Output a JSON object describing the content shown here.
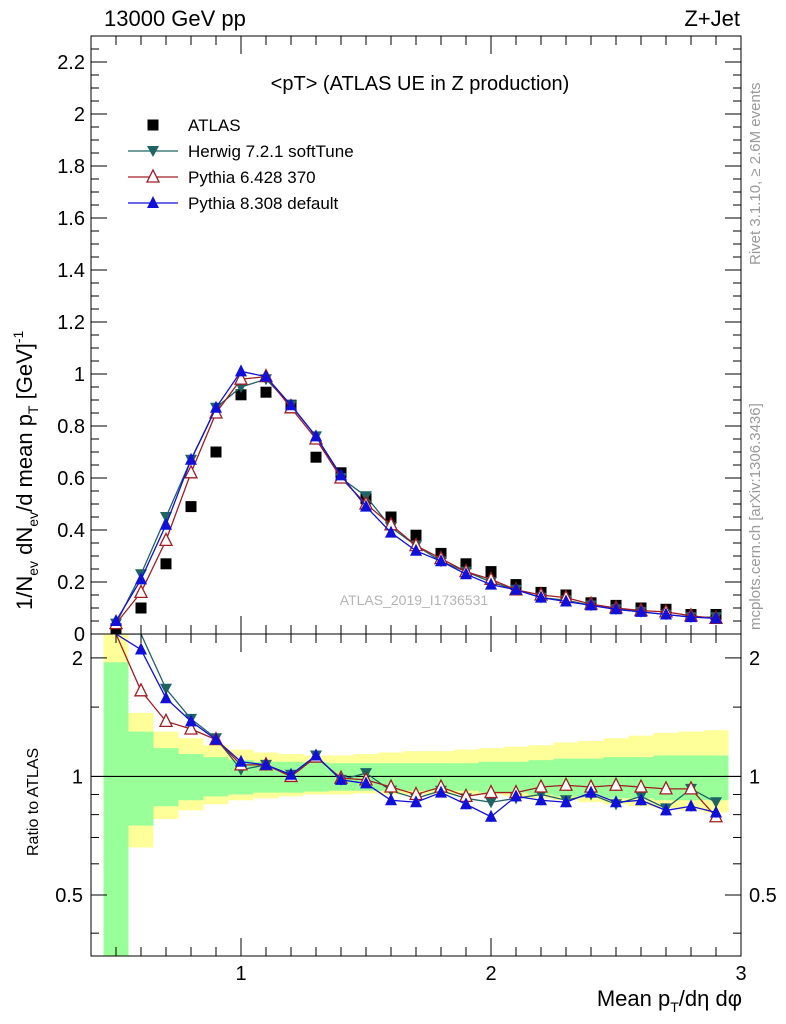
{
  "header": {
    "left": "13000 GeV pp",
    "right": "Z+Jet"
  },
  "side_labels": {
    "rivet": "Rivet 3.1.10, ≥ 2.6M events",
    "mcplots": "mcplots.cern.ch [arXiv:1306.3436]"
  },
  "watermark": "ATLAS_2019_I1736531",
  "colors": {
    "atlas": "#000000",
    "herwig": "#1f6364",
    "pythia6": "#a01d23",
    "pythia8": "#1010d8",
    "band_inner": "#99ff99",
    "band_outer": "#ffff99"
  },
  "chart_data": [
    {
      "type": "line",
      "title": "<pT> (ATLAS UE in Z production)",
      "ylabel": "1/N_ev dN_ev/d mean p_T [GeV]^-1",
      "xlabel": "",
      "xlim": [
        0.4,
        3.0
      ],
      "ylim": [
        0,
        2.3
      ],
      "yticks": [
        "0",
        "0.2",
        "0.4",
        "0.6",
        "0.8",
        "1",
        "1.2",
        "1.4",
        "1.6",
        "1.8",
        "2",
        "2.2"
      ],
      "legend": [
        "ATLAS",
        "Herwig 7.2.1 softTune",
        "Pythia 6.428 370",
        "Pythia 8.308 default"
      ],
      "legend_position": "top-left",
      "x": [
        0.5,
        0.6,
        0.7,
        0.8,
        0.9,
        1.0,
        1.1,
        1.2,
        1.3,
        1.4,
        1.5,
        1.6,
        1.7,
        1.8,
        1.9,
        2.0,
        2.1,
        2.2,
        2.3,
        2.4,
        2.5,
        2.6,
        2.7,
        2.8,
        2.9
      ],
      "series": [
        {
          "name": "ATLAS",
          "marker": "square",
          "values": [
            0.02,
            0.1,
            0.27,
            0.49,
            0.7,
            0.92,
            0.93,
            0.88,
            0.68,
            0.62,
            0.52,
            0.45,
            0.38,
            0.31,
            0.27,
            0.24,
            0.19,
            0.16,
            0.15,
            0.12,
            0.11,
            0.1,
            0.095,
            0.075,
            0.075
          ]
        },
        {
          "name": "Herwig 7.2.1 softTune",
          "marker": "triangle-down",
          "values": [
            0.04,
            0.23,
            0.45,
            0.67,
            0.87,
            0.95,
            0.98,
            0.88,
            0.76,
            0.6,
            0.53,
            0.41,
            0.34,
            0.28,
            0.24,
            0.2,
            0.17,
            0.14,
            0.13,
            0.11,
            0.095,
            0.085,
            0.075,
            0.065,
            0.065
          ]
        },
        {
          "name": "Pythia 6.428 370",
          "marker": "triangle-up-open",
          "values": [
            0.04,
            0.16,
            0.36,
            0.62,
            0.85,
            0.98,
            0.99,
            0.87,
            0.75,
            0.6,
            0.5,
            0.42,
            0.34,
            0.29,
            0.24,
            0.21,
            0.17,
            0.15,
            0.14,
            0.115,
            0.1,
            0.09,
            0.085,
            0.07,
            0.06
          ]
        },
        {
          "name": "Pythia 8.308 default",
          "marker": "triangle-up",
          "values": [
            0.05,
            0.21,
            0.42,
            0.67,
            0.87,
            1.01,
            0.99,
            0.88,
            0.76,
            0.61,
            0.49,
            0.39,
            0.32,
            0.28,
            0.23,
            0.19,
            0.17,
            0.14,
            0.125,
            0.11,
            0.095,
            0.085,
            0.075,
            0.065,
            0.06
          ]
        }
      ]
    },
    {
      "type": "line",
      "title": "",
      "ylabel": "Ratio to ATLAS",
      "xlabel": "Mean p_T/dη dφ",
      "xlim": [
        0.4,
        3.0
      ],
      "ylim": [
        0.35,
        2.3
      ],
      "yscale": "log",
      "reference": 1.0,
      "yticks": [
        "0.5",
        "1",
        "2"
      ],
      "xticks": [
        "1",
        "2",
        "3"
      ],
      "x": [
        0.5,
        0.6,
        0.7,
        0.8,
        0.9,
        1.0,
        1.1,
        1.2,
        1.3,
        1.4,
        1.5,
        1.6,
        1.7,
        1.8,
        1.9,
        2.0,
        2.1,
        2.2,
        2.3,
        2.4,
        2.5,
        2.6,
        2.7,
        2.8,
        2.9
      ],
      "band_inner": [
        [
          0.3,
          1.95
        ],
        [
          0.75,
          1.3
        ],
        [
          0.84,
          1.18
        ],
        [
          0.87,
          1.14
        ],
        [
          0.89,
          1.12
        ],
        [
          0.9,
          1.1
        ],
        [
          0.91,
          1.09
        ],
        [
          0.91,
          1.09
        ],
        [
          0.915,
          1.085
        ],
        [
          0.92,
          1.08
        ],
        [
          0.92,
          1.08
        ],
        [
          0.92,
          1.08
        ],
        [
          0.92,
          1.08
        ],
        [
          0.92,
          1.08
        ],
        [
          0.92,
          1.08
        ],
        [
          0.91,
          1.09
        ],
        [
          0.91,
          1.09
        ],
        [
          0.9,
          1.1
        ],
        [
          0.89,
          1.11
        ],
        [
          0.89,
          1.11
        ],
        [
          0.88,
          1.12
        ],
        [
          0.88,
          1.12
        ],
        [
          0.87,
          1.13
        ],
        [
          0.87,
          1.13
        ],
        [
          0.87,
          1.13
        ]
      ],
      "band_outer": [
        [
          0.3,
          2.3
        ],
        [
          0.66,
          1.45
        ],
        [
          0.78,
          1.3
        ],
        [
          0.82,
          1.25
        ],
        [
          0.85,
          1.2
        ],
        [
          0.87,
          1.17
        ],
        [
          0.88,
          1.15
        ],
        [
          0.89,
          1.14
        ],
        [
          0.9,
          1.13
        ],
        [
          0.9,
          1.13
        ],
        [
          0.905,
          1.14
        ],
        [
          0.9,
          1.15
        ],
        [
          0.9,
          1.16
        ],
        [
          0.9,
          1.16
        ],
        [
          0.9,
          1.17
        ],
        [
          0.9,
          1.18
        ],
        [
          0.89,
          1.19
        ],
        [
          0.88,
          1.2
        ],
        [
          0.87,
          1.22
        ],
        [
          0.86,
          1.23
        ],
        [
          0.85,
          1.25
        ],
        [
          0.84,
          1.27
        ],
        [
          0.83,
          1.29
        ],
        [
          0.82,
          1.3
        ],
        [
          0.81,
          1.31
        ]
      ],
      "series": [
        {
          "name": "Herwig 7.2.1 softTune",
          "values": [
            2.3,
            2.3,
            1.67,
            1.4,
            1.25,
            1.04,
            1.07,
            1.01,
            1.13,
            0.98,
            1.02,
            0.92,
            0.88,
            0.92,
            0.88,
            0.86,
            0.88,
            0.9,
            0.87,
            0.9,
            0.85,
            0.89,
            0.83,
            0.93,
            0.86
          ]
        },
        {
          "name": "Pythia 6.428 370",
          "values": [
            2.3,
            1.65,
            1.38,
            1.32,
            1.24,
            1.07,
            1.07,
            1.0,
            1.12,
            0.99,
            0.98,
            0.94,
            0.9,
            0.94,
            0.89,
            0.91,
            0.91,
            0.94,
            0.95,
            0.94,
            0.95,
            0.94,
            0.93,
            0.93,
            0.79
          ]
        },
        {
          "name": "Pythia 8.308 default",
          "values": [
            2.3,
            2.1,
            1.58,
            1.38,
            1.24,
            1.09,
            1.07,
            1.01,
            1.13,
            0.98,
            0.96,
            0.87,
            0.86,
            0.91,
            0.85,
            0.79,
            0.89,
            0.87,
            0.86,
            0.91,
            0.86,
            0.87,
            0.82,
            0.84,
            0.81
          ]
        }
      ]
    }
  ]
}
